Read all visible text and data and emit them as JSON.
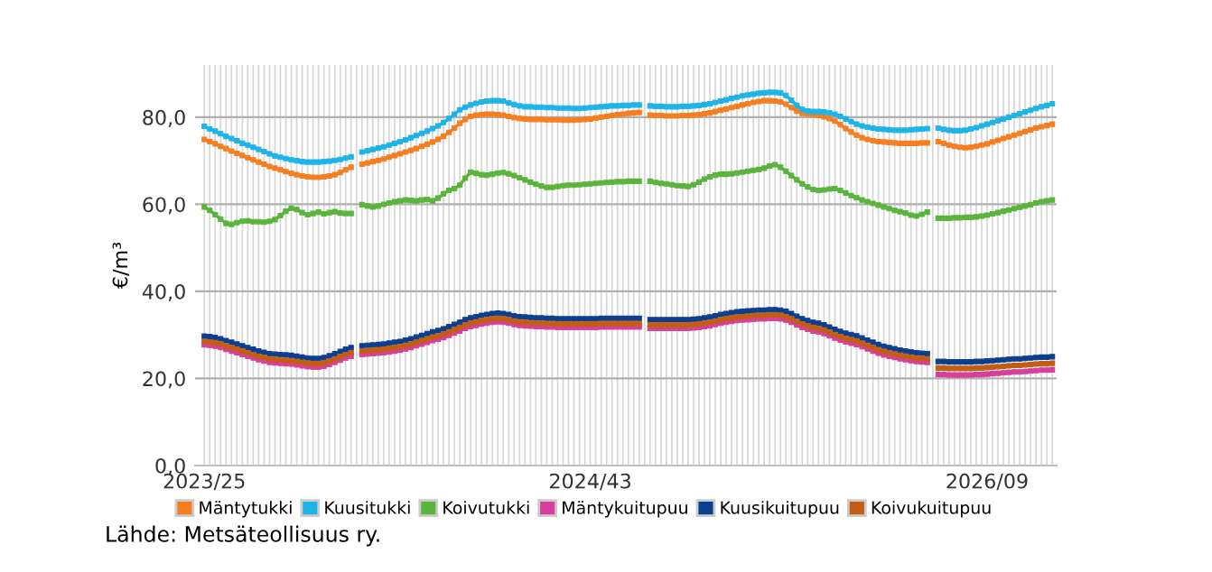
{
  "chart_data": {
    "type": "line",
    "ylabel": "€/m³",
    "categories": [
      "2023/25",
      null,
      null,
      null,
      null,
      null,
      null,
      null,
      null,
      null,
      null,
      null,
      null,
      null,
      null,
      null,
      null,
      null,
      null,
      null,
      null,
      null,
      null,
      null,
      null,
      null,
      null,
      null,
      null,
      null,
      null,
      null,
      null,
      null,
      null,
      null,
      null,
      null,
      null,
      null,
      null,
      null,
      null,
      null,
      null,
      null,
      null,
      null,
      null,
      null,
      null,
      null,
      null,
      null,
      null,
      null,
      null,
      null,
      null,
      null,
      null,
      null,
      null,
      null,
      null,
      null,
      null,
      null,
      null,
      null,
      null,
      "2024/43",
      null,
      null,
      null,
      null,
      null,
      null,
      null,
      null,
      null,
      null,
      null,
      null,
      null,
      null,
      null,
      null,
      null,
      null,
      null,
      null,
      null,
      null,
      null,
      null,
      null,
      null,
      null,
      null,
      null,
      null,
      null,
      null,
      null,
      null,
      null,
      null,
      null,
      null,
      null,
      null,
      null,
      null,
      null,
      null,
      null,
      null,
      null,
      null,
      null,
      null,
      null,
      null,
      null,
      null,
      null,
      null,
      null,
      null,
      null,
      null,
      null,
      null,
      null,
      null,
      null,
      null,
      null,
      null,
      null,
      null,
      null,
      null,
      "2026/09",
      null,
      null,
      null,
      null,
      null,
      null,
      null,
      null,
      null,
      null,
      null,
      null
    ],
    "series": [
      {
        "name": "Mäntytukki",
        "color": "#f57f20",
        "values": [
          74.9,
          74.4,
          73.9,
          73.3,
          72.8,
          72.2,
          71.7,
          71.2,
          70.7,
          70.2,
          69.7,
          69.2,
          68.7,
          68.3,
          67.9,
          67.5,
          67.1,
          66.8,
          66.5,
          66.3,
          66.2,
          66.2,
          66.3,
          66.5,
          66.8,
          67.3,
          67.9,
          68.5,
          null,
          69.2,
          69.5,
          69.8,
          70.1,
          70.4,
          70.8,
          71.2,
          71.6,
          72.0,
          72.4,
          72.8,
          73.3,
          73.8,
          74.3,
          74.9,
          75.6,
          76.5,
          77.5,
          78.6,
          79.5,
          80.2,
          80.5,
          80.6,
          80.7,
          80.7,
          80.6,
          80.5,
          80.2,
          79.9,
          79.7,
          79.6,
          79.5,
          79.5,
          79.5,
          79.4,
          79.4,
          79.4,
          79.3,
          79.3,
          79.3,
          79.4,
          79.5,
          79.6,
          79.8,
          80.0,
          80.2,
          80.4,
          80.6,
          80.7,
          80.9,
          81.0,
          81.1,
          null,
          80.5,
          80.4,
          80.4,
          80.3,
          80.3,
          80.3,
          80.4,
          80.4,
          80.5,
          80.6,
          80.8,
          81.0,
          81.3,
          81.6,
          81.9,
          82.2,
          82.5,
          82.8,
          83.1,
          83.4,
          83.6,
          83.8,
          83.8,
          83.7,
          83.5,
          83.0,
          82.2,
          81.4,
          80.9,
          80.7,
          80.6,
          80.4,
          80.1,
          79.7,
          79.1,
          78.3,
          77.4,
          76.6,
          75.9,
          75.3,
          74.9,
          74.6,
          74.4,
          74.3,
          74.2,
          74.1,
          74.0,
          74.0,
          74.0,
          74.0,
          74.1,
          74.1,
          null,
          74.4,
          74.0,
          73.6,
          73.3,
          73.1,
          73.0,
          73.1,
          73.3,
          73.6,
          73.9,
          74.3,
          74.7,
          75.1,
          75.5,
          75.9,
          76.3,
          76.7,
          77.1,
          77.5,
          77.8,
          78.1,
          78.4
        ]
      },
      {
        "name": "Kuusitukki",
        "color": "#1eb4e8",
        "values": [
          77.9,
          77.3,
          76.8,
          76.2,
          75.6,
          75.1,
          74.6,
          74.0,
          73.6,
          73.1,
          72.6,
          72.1,
          71.6,
          71.1,
          70.8,
          70.5,
          70.2,
          70.0,
          69.8,
          69.7,
          69.7,
          69.7,
          69.8,
          69.9,
          70.1,
          70.3,
          70.6,
          70.9,
          null,
          72.0,
          72.3,
          72.6,
          72.9,
          73.2,
          73.6,
          74.0,
          74.4,
          74.8,
          75.3,
          75.8,
          76.3,
          76.8,
          77.4,
          78.0,
          78.8,
          79.7,
          80.7,
          81.7,
          82.3,
          82.8,
          83.2,
          83.5,
          83.7,
          83.8,
          83.8,
          83.7,
          83.3,
          82.9,
          82.6,
          82.4,
          82.4,
          82.3,
          82.3,
          82.2,
          82.2,
          82.1,
          82.1,
          82.1,
          82.0,
          82.0,
          82.1,
          82.2,
          82.3,
          82.4,
          82.5,
          82.6,
          82.6,
          82.7,
          82.7,
          82.8,
          82.8,
          null,
          82.6,
          82.5,
          82.5,
          82.4,
          82.4,
          82.4,
          82.5,
          82.5,
          82.6,
          82.7,
          82.9,
          83.1,
          83.4,
          83.7,
          84.0,
          84.3,
          84.6,
          84.9,
          85.1,
          85.3,
          85.5,
          85.6,
          85.7,
          85.7,
          85.6,
          85.0,
          83.9,
          82.7,
          81.8,
          81.4,
          81.3,
          81.3,
          81.2,
          81.0,
          80.7,
          80.2,
          79.6,
          79.0,
          78.4,
          78.0,
          77.7,
          77.5,
          77.3,
          77.2,
          77.1,
          77.0,
          77.0,
          77.0,
          77.1,
          77.2,
          77.3,
          77.4,
          null,
          77.5,
          77.2,
          77.0,
          76.9,
          76.9,
          77.0,
          77.3,
          77.6,
          78.0,
          78.4,
          78.8,
          79.2,
          79.6,
          80.0,
          80.4,
          80.8,
          81.2,
          81.6,
          82.0,
          82.4,
          82.7,
          83.1
        ]
      },
      {
        "name": "Koivutukki",
        "color": "#5bb43c",
        "values": [
          59.4,
          58.6,
          57.6,
          56.6,
          55.6,
          55.4,
          55.8,
          56.1,
          56.2,
          56.0,
          56.0,
          55.9,
          56.1,
          56.5,
          57.4,
          58.4,
          59.1,
          58.8,
          58.1,
          57.6,
          57.9,
          58.2,
          57.8,
          58.1,
          58.3,
          58.0,
          57.9,
          57.9,
          null,
          59.9,
          59.6,
          59.4,
          59.6,
          60.0,
          60.3,
          60.6,
          60.8,
          61.0,
          60.9,
          60.8,
          61.0,
          61.1,
          60.8,
          61.4,
          62.4,
          63.2,
          63.6,
          64.4,
          66.0,
          67.4,
          67.1,
          66.8,
          66.7,
          66.9,
          67.2,
          67.3,
          67.0,
          66.6,
          66.1,
          65.6,
          65.1,
          64.6,
          64.2,
          63.9,
          63.9,
          64.1,
          64.3,
          64.4,
          64.4,
          64.5,
          64.6,
          64.7,
          64.8,
          64.9,
          65.0,
          65.1,
          65.2,
          65.2,
          65.3,
          65.3,
          65.3,
          null,
          65.3,
          65.0,
          64.8,
          64.7,
          64.5,
          64.3,
          64.2,
          64.1,
          64.5,
          65.1,
          65.8,
          66.3,
          66.7,
          66.9,
          66.9,
          67.0,
          67.2,
          67.4,
          67.6,
          67.8,
          68.0,
          68.3,
          68.8,
          69.1,
          68.5,
          67.6,
          66.6,
          65.6,
          64.7,
          64.0,
          63.4,
          63.2,
          63.3,
          63.5,
          63.6,
          63.2,
          62.6,
          62.0,
          61.5,
          61.0,
          60.6,
          60.2,
          59.8,
          59.4,
          59.0,
          58.6,
          58.3,
          58.0,
          57.5,
          57.3,
          57.7,
          58.2,
          null,
          56.8,
          56.8,
          56.8,
          56.9,
          56.9,
          57.0,
          57.0,
          57.1,
          57.3,
          57.5,
          57.8,
          58.1,
          58.4,
          58.7,
          59.0,
          59.3,
          59.6,
          59.9,
          60.3,
          60.6,
          60.8,
          61.0
        ]
      },
      {
        "name": "Mäntykuitupuu",
        "color": "#d6409a",
        "values": [
          27.7,
          27.6,
          27.4,
          27.1,
          26.7,
          26.3,
          25.9,
          25.5,
          25.1,
          24.7,
          24.3,
          24.0,
          23.7,
          23.6,
          23.5,
          23.4,
          23.3,
          23.1,
          22.9,
          22.7,
          22.6,
          22.6,
          22.8,
          23.2,
          23.7,
          24.2,
          24.7,
          25.1,
          null,
          25.5,
          25.6,
          25.7,
          25.8,
          25.9,
          26.1,
          26.3,
          26.5,
          26.8,
          27.1,
          27.5,
          27.9,
          28.3,
          28.7,
          29.0,
          29.4,
          29.9,
          30.4,
          30.9,
          31.5,
          31.9,
          32.2,
          32.5,
          32.7,
          32.9,
          33.0,
          32.9,
          32.7,
          32.4,
          32.2,
          32.1,
          32.0,
          31.9,
          31.9,
          31.8,
          31.8,
          31.7,
          31.7,
          31.7,
          31.7,
          31.7,
          31.7,
          31.7,
          31.7,
          31.8,
          31.8,
          31.8,
          31.8,
          31.8,
          31.8,
          31.8,
          31.8,
          null,
          31.5,
          31.5,
          31.5,
          31.5,
          31.5,
          31.5,
          31.5,
          31.5,
          31.6,
          31.7,
          31.9,
          32.1,
          32.4,
          32.7,
          32.9,
          33.1,
          33.3,
          33.4,
          33.5,
          33.6,
          33.7,
          33.7,
          33.8,
          33.8,
          33.7,
          33.4,
          32.9,
          32.3,
          31.7,
          31.3,
          30.9,
          30.7,
          30.3,
          29.8,
          29.3,
          28.8,
          28.4,
          28.1,
          27.8,
          27.3,
          26.8,
          26.3,
          25.8,
          25.4,
          25.1,
          24.8,
          24.5,
          24.3,
          24.1,
          23.9,
          23.8,
          23.7,
          null,
          20.9,
          20.9,
          20.8,
          20.8,
          20.8,
          20.8,
          20.8,
          20.9,
          20.9,
          21.0,
          21.1,
          21.2,
          21.3,
          21.4,
          21.5,
          21.5,
          21.6,
          21.7,
          21.8,
          21.9,
          21.9,
          22.0
        ]
      },
      {
        "name": "Kuusikuitupuu",
        "color": "#0d3f8f",
        "values": [
          29.7,
          29.6,
          29.4,
          29.1,
          28.7,
          28.3,
          27.9,
          27.5,
          27.1,
          26.7,
          26.3,
          26.0,
          25.7,
          25.6,
          25.5,
          25.4,
          25.3,
          25.1,
          24.9,
          24.7,
          24.6,
          24.6,
          24.8,
          25.2,
          25.7,
          26.2,
          26.7,
          27.1,
          null,
          27.5,
          27.6,
          27.7,
          27.8,
          27.9,
          28.1,
          28.3,
          28.5,
          28.8,
          29.1,
          29.5,
          29.9,
          30.3,
          30.7,
          31.0,
          31.4,
          31.9,
          32.4,
          32.9,
          33.5,
          33.9,
          34.2,
          34.5,
          34.7,
          34.9,
          35.0,
          34.9,
          34.7,
          34.4,
          34.2,
          34.1,
          34.0,
          33.9,
          33.9,
          33.8,
          33.8,
          33.7,
          33.7,
          33.7,
          33.7,
          33.7,
          33.7,
          33.7,
          33.7,
          33.8,
          33.8,
          33.8,
          33.8,
          33.8,
          33.8,
          33.8,
          33.8,
          null,
          33.5,
          33.5,
          33.5,
          33.5,
          33.5,
          33.5,
          33.5,
          33.5,
          33.6,
          33.7,
          33.9,
          34.1,
          34.4,
          34.7,
          34.9,
          35.1,
          35.3,
          35.4,
          35.5,
          35.6,
          35.7,
          35.7,
          35.8,
          35.8,
          35.7,
          35.4,
          34.9,
          34.3,
          33.7,
          33.3,
          32.9,
          32.7,
          32.3,
          31.8,
          31.3,
          30.8,
          30.4,
          30.1,
          29.8,
          29.3,
          28.8,
          28.3,
          27.8,
          27.4,
          27.1,
          26.8,
          26.5,
          26.3,
          26.1,
          25.9,
          25.8,
          25.7,
          null,
          23.9,
          23.9,
          23.8,
          23.8,
          23.8,
          23.8,
          23.8,
          23.9,
          23.9,
          24.0,
          24.1,
          24.2,
          24.3,
          24.4,
          24.5,
          24.5,
          24.6,
          24.7,
          24.8,
          24.9,
          24.9,
          25.0
        ]
      },
      {
        "name": "Koivukuitupuu",
        "color": "#c25d14",
        "values": [
          28.5,
          28.4,
          28.2,
          27.9,
          27.5,
          27.1,
          26.7,
          26.3,
          25.9,
          25.5,
          25.1,
          24.8,
          24.5,
          24.4,
          24.3,
          24.2,
          24.1,
          23.9,
          23.7,
          23.5,
          23.4,
          23.4,
          23.6,
          24.0,
          24.5,
          25.0,
          25.5,
          25.9,
          null,
          26.3,
          26.4,
          26.5,
          26.6,
          26.7,
          26.9,
          27.1,
          27.3,
          27.6,
          27.9,
          28.3,
          28.7,
          29.1,
          29.5,
          29.8,
          30.2,
          30.7,
          31.2,
          31.7,
          32.3,
          32.7,
          33.0,
          33.3,
          33.5,
          33.7,
          33.8,
          33.7,
          33.5,
          33.2,
          33.0,
          32.9,
          32.8,
          32.7,
          32.7,
          32.6,
          32.6,
          32.5,
          32.5,
          32.5,
          32.5,
          32.5,
          32.5,
          32.5,
          32.5,
          32.6,
          32.6,
          32.6,
          32.6,
          32.6,
          32.6,
          32.6,
          32.6,
          null,
          32.3,
          32.3,
          32.3,
          32.3,
          32.3,
          32.3,
          32.3,
          32.3,
          32.4,
          32.5,
          32.7,
          32.9,
          33.2,
          33.5,
          33.7,
          33.9,
          34.1,
          34.2,
          34.3,
          34.4,
          34.5,
          34.5,
          34.6,
          34.6,
          34.5,
          34.2,
          33.7,
          33.1,
          32.5,
          32.1,
          31.7,
          31.5,
          31.1,
          30.6,
          30.1,
          29.6,
          29.2,
          28.9,
          28.6,
          28.1,
          27.6,
          27.1,
          26.6,
          26.2,
          25.9,
          25.6,
          25.3,
          25.1,
          24.9,
          24.7,
          24.6,
          24.5,
          null,
          22.4,
          22.4,
          22.3,
          22.3,
          22.3,
          22.3,
          22.3,
          22.4,
          22.4,
          22.5,
          22.6,
          22.7,
          22.8,
          22.9,
          23.0,
          23.0,
          23.1,
          23.2,
          23.3,
          23.4,
          23.4,
          23.5
        ]
      }
    ],
    "ylim": [
      0,
      92
    ],
    "yticks": [
      {
        "value": 0,
        "label": "0,0"
      },
      {
        "value": 20,
        "label": "20,0"
      },
      {
        "value": 40,
        "label": "40,0"
      },
      {
        "value": 60,
        "label": "60,0"
      },
      {
        "value": 80,
        "label": "80,0"
      }
    ],
    "grid": true,
    "legend": "bottom",
    "marker": "square",
    "line_style": "solid",
    "annotations": [
      "Lähde: Metsäteollisuus ry."
    ]
  }
}
